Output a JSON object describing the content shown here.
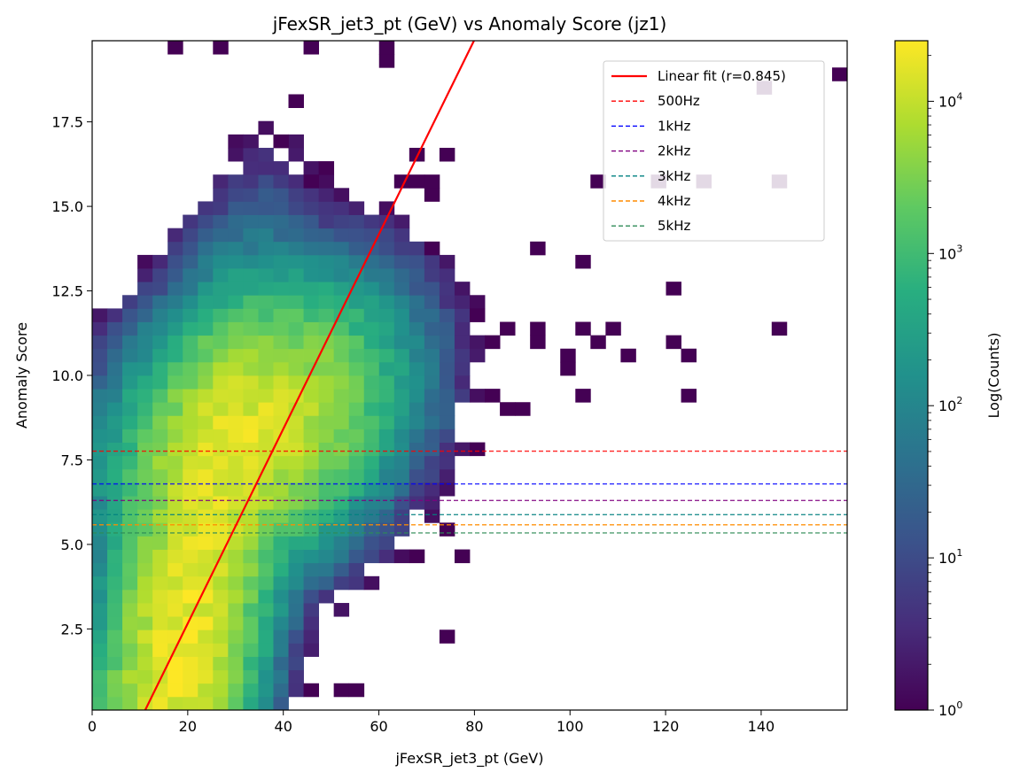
{
  "chart_data": {
    "type": "heatmap",
    "title": "jFexSR_jet3_pt (GeV) vs Anomaly Score (jz1)",
    "xlabel": "jFexSR_jet3_pt (GeV)",
    "ylabel": "Anomaly Score",
    "xlim": [
      0,
      158
    ],
    "ylim": [
      0.1,
      19.9
    ],
    "x_ticks": [
      0,
      20,
      40,
      60,
      80,
      100,
      120,
      140
    ],
    "x_tick_labels": [
      "0",
      "20",
      "40",
      "60",
      "80",
      "100",
      "120",
      "140"
    ],
    "y_ticks": [
      2.5,
      5.0,
      7.5,
      10.0,
      12.5,
      15.0,
      17.5
    ],
    "y_tick_labels": [
      "2.5",
      "5.0",
      "7.5",
      "10.0",
      "12.5",
      "15.0",
      "17.5"
    ],
    "bins": {
      "x_start": 0,
      "x_width": 3.16,
      "nx": 50,
      "y_start": 0.1,
      "y_width": 0.396,
      "ny": 50
    },
    "colorbar": {
      "label": "Log(Counts)",
      "scale": "log",
      "min": 1,
      "max": 25000,
      "tick_labels": [
        {
          "base": "10",
          "exp": "0"
        },
        {
          "base": "10",
          "exp": "1"
        },
        {
          "base": "10",
          "exp": "2"
        },
        {
          "base": "10",
          "exp": "3"
        },
        {
          "base": "10",
          "exp": "4"
        }
      ],
      "colormap": "viridis"
    },
    "density_model": {
      "main_blob": {
        "cx": 19,
        "cy": 2.3,
        "sx": 7.5,
        "sy": 3.4,
        "rho": 0.55,
        "peak": 20000
      },
      "upper_blob": {
        "cx": 34,
        "cy": 8.4,
        "sx": 11,
        "sy": 1.6,
        "rho": 0.3,
        "peak": 14000
      },
      "tail": {
        "x_min": 55,
        "x_max": 75,
        "y_min": 8.5,
        "y_max": 11.8
      }
    },
    "sparse_points": [
      [
        18,
        19.6
      ],
      [
        28,
        19.6
      ],
      [
        47,
        19.6
      ],
      [
        63,
        19.6
      ],
      [
        63,
        19.2
      ],
      [
        157,
        19.1
      ],
      [
        141,
        18.4
      ],
      [
        43,
        18.0
      ],
      [
        40,
        16.8
      ],
      [
        69,
        16.4
      ],
      [
        73,
        16.4
      ],
      [
        49,
        16.0
      ],
      [
        42,
        15.6
      ],
      [
        45,
        15.6
      ],
      [
        48,
        15.6
      ],
      [
        65,
        15.6
      ],
      [
        67,
        15.6
      ],
      [
        71,
        15.6
      ],
      [
        106,
        15.6
      ],
      [
        118,
        15.6
      ],
      [
        128,
        15.6
      ],
      [
        144,
        15.6
      ],
      [
        39,
        15.2
      ],
      [
        71,
        15.2
      ],
      [
        36,
        14.9
      ],
      [
        39,
        14.9
      ],
      [
        52,
        14.5
      ],
      [
        55,
        14.5
      ],
      [
        57,
        14.5
      ],
      [
        66,
        14.5
      ],
      [
        30,
        14.1
      ],
      [
        48,
        14.1
      ],
      [
        52,
        14.1
      ],
      [
        55,
        14.1
      ],
      [
        57,
        14.1
      ],
      [
        71,
        13.7
      ],
      [
        92,
        13.7
      ],
      [
        30,
        13.7
      ],
      [
        33,
        13.4
      ],
      [
        36,
        13.4
      ],
      [
        39,
        13.4
      ],
      [
        42,
        13.4
      ],
      [
        46,
        13.4
      ],
      [
        75,
        13.4
      ],
      [
        104,
        13.4
      ],
      [
        26,
        13.0
      ],
      [
        29,
        13.0
      ],
      [
        35,
        13.0
      ],
      [
        45,
        13.0
      ],
      [
        48,
        13.0
      ],
      [
        52,
        13.0
      ],
      [
        18,
        12.7
      ],
      [
        30,
        12.7
      ],
      [
        74,
        12.7
      ],
      [
        122,
        12.7
      ],
      [
        40,
        12.2
      ],
      [
        47,
        12.2
      ],
      [
        51,
        12.2
      ],
      [
        61,
        12.2
      ],
      [
        80,
        11.9
      ],
      [
        88,
        11.5
      ],
      [
        93,
        11.5
      ],
      [
        103,
        11.5
      ],
      [
        109,
        11.5
      ],
      [
        144,
        11.5
      ],
      [
        85,
        11.1
      ],
      [
        106,
        11.1
      ],
      [
        122,
        11.1
      ],
      [
        20,
        10.8
      ],
      [
        94,
        10.8
      ],
      [
        19,
        10.4
      ],
      [
        99,
        10.4
      ],
      [
        113,
        10.4
      ],
      [
        125,
        10.4
      ],
      [
        22,
        10.0
      ],
      [
        100,
        10.0
      ],
      [
        85,
        9.6
      ],
      [
        103,
        9.6
      ],
      [
        125,
        9.6
      ],
      [
        20,
        9.2
      ],
      [
        87,
        9.2
      ],
      [
        90,
        9.2
      ],
      [
        18,
        8.8
      ],
      [
        80,
        8.0
      ],
      [
        75,
        6.5
      ],
      [
        73,
        5.3
      ],
      [
        67,
        4.5
      ],
      [
        78,
        4.5
      ],
      [
        75,
        2.1
      ],
      [
        47,
        0.7
      ],
      [
        51,
        0.7
      ],
      [
        55,
        0.7
      ]
    ],
    "fit_line": {
      "label": "Linear fit (r=0.845)",
      "color": "#ff0000",
      "points": [
        [
          11.1,
          0.1
        ],
        [
          79.9,
          19.9
        ]
      ]
    },
    "threshold_lines": [
      {
        "label": "500Hz",
        "y": 7.76,
        "color": "#ff0000"
      },
      {
        "label": "1kHz",
        "y": 6.79,
        "color": "#0000ff"
      },
      {
        "label": "2kHz",
        "y": 6.3,
        "color": "#800080"
      },
      {
        "label": "3kHz",
        "y": 5.88,
        "color": "#008080"
      },
      {
        "label": "4kHz",
        "y": 5.58,
        "color": "#ff8c00"
      },
      {
        "label": "5kHz",
        "y": 5.34,
        "color": "#2e8b57"
      }
    ],
    "legend_position": "upper right"
  }
}
